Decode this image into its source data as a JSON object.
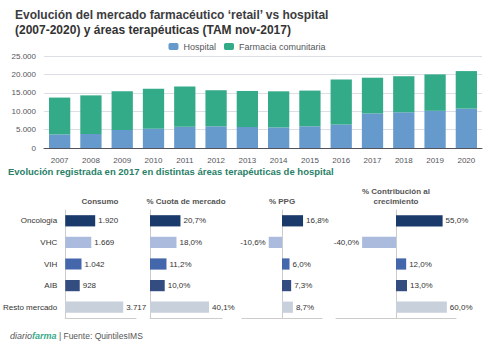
{
  "chart_data": [
    {
      "type": "bar",
      "title": "Evolución del mercado farmacéutico ‘retail’ vs hospital",
      "subtitle": "(2007-2020) y áreas terapéuticas (TAM nov-2017)",
      "categories": [
        2007,
        2008,
        2009,
        2010,
        2011,
        2012,
        2013,
        2014,
        2015,
        2016,
        2017,
        2018,
        2019,
        2020
      ],
      "series": [
        {
          "name": "Hospital",
          "color": "#6699cc",
          "values": [
            3700,
            3800,
            4900,
            5200,
            5800,
            5900,
            5700,
            5600,
            5900,
            6400,
            9400,
            9700,
            10100,
            10700
          ]
        },
        {
          "name": "Farmacia comunitaria",
          "color": "#33aa88",
          "values": [
            10000,
            10500,
            10500,
            10900,
            10900,
            9800,
            9800,
            9800,
            9700,
            12200,
            9700,
            9800,
            9900,
            10200
          ]
        }
      ],
      "stacked": true,
      "ylim": [
        0,
        25000
      ],
      "yticks": [
        0,
        {
          "value": 5000,
          "label": "5.000"
        },
        {
          "value": 10000,
          "label": "10.000"
        },
        {
          "value": 15000,
          "label": "15.000"
        },
        {
          "value": 20000,
          "label": "20.000"
        },
        {
          "value": 25000,
          "label": "25.000"
        }
      ],
      "grid": true,
      "legend": "top",
      "annotations": [
        "Evolución registrada en 2017 en distintas áreas terapéuticas de hospital",
        "diario",
        "farma",
        " | Fuente: QuintilesIMS"
      ]
    },
    {
      "type": "bar",
      "orientation": "horizontal",
      "title": "Consumo",
      "categories": [
        "Oncología",
        "VHC",
        "VIH",
        "AIB",
        "Resto mercado"
      ],
      "values": [
        1920,
        1669,
        1042,
        928,
        3717
      ],
      "value_labels": [
        "1.920",
        "1.669",
        "1.042",
        "928",
        "3.717"
      ],
      "colors": [
        "#1a3a6b",
        "#aabbdd",
        "#4466aa",
        "#334d80",
        "#c8d0dc"
      ],
      "data_labels": true,
      "xlim": [
        0,
        4534.74
      ],
      "tick_labels": "y",
      "grid": false
    },
    {
      "type": "bar",
      "orientation": "horizontal",
      "title": "% Cuota de mercado",
      "categories": [
        "Oncología",
        "VHC",
        "VIH",
        "AIB",
        "Resto mercado"
      ],
      "values": [
        20.7,
        18.0,
        11.2,
        10.0,
        40.1
      ],
      "value_labels": [
        "20,7%",
        "18,0%",
        "11,2%",
        "10,0%",
        "40,1%"
      ],
      "colors": [
        "#1a3a6b",
        "#aabbdd",
        "#4466aa",
        "#334d80",
        "#c8d0dc"
      ],
      "data_labels": true,
      "xlim": [
        0,
        48.922
      ],
      "tick_labels": false,
      "grid": false
    },
    {
      "type": "bar",
      "orientation": "horizontal",
      "title": "% PPG",
      "categories": [
        "Oncología",
        "VHC",
        "VIH",
        "AIB",
        "Resto mercado"
      ],
      "values": [
        16.8,
        -10.6,
        6.0,
        7.3,
        8.7
      ],
      "value_labels": [
        "16,8%",
        "-10,6%",
        "6,0%",
        "7,3%",
        "8,7%"
      ],
      "colors": [
        "#1a3a6b",
        "#aabbdd",
        "#4466aa",
        "#334d80",
        "#c8d0dc"
      ],
      "data_labels": true,
      "xlim": [
        -31.92,
        31.92
      ],
      "tick_labels": false,
      "grid": false
    },
    {
      "type": "bar",
      "orientation": "horizontal",
      "title": "% Contribución al\ncrecimiento",
      "categories": [
        "Oncología",
        "VHC",
        "VIH",
        "AIB",
        "Resto mercado"
      ],
      "values": [
        55.0,
        -40.0,
        12.0,
        13.0,
        60.0
      ],
      "value_labels": [
        "55,0%",
        "-40,0%",
        "12,0%",
        "13,0%",
        "60,0%"
      ],
      "colors": [
        "#1a3a6b",
        "#aabbdd",
        "#4466aa",
        "#334d80",
        "#c8d0dc"
      ],
      "data_labels": true,
      "xlim": [
        -70.8,
        70.8
      ],
      "tick_labels": false,
      "grid": false
    }
  ]
}
